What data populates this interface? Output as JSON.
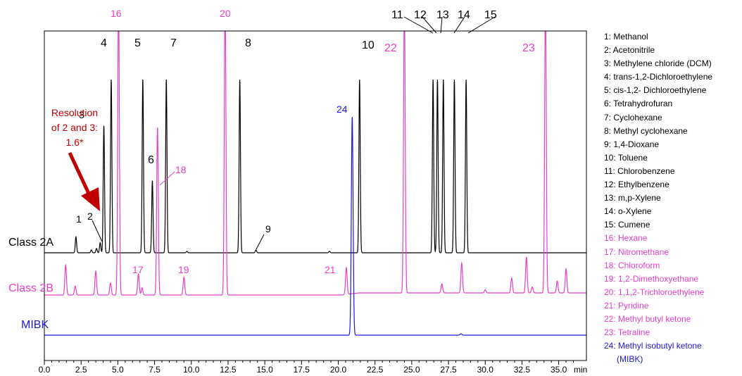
{
  "chart_data": {
    "type": "line",
    "title": "",
    "xlabel": "min",
    "ylabel": "",
    "xlim": [
      0,
      37
    ],
    "x_ticks": [
      "0.0",
      "2.5",
      "5.0",
      "7.5",
      "10.0",
      "12.5",
      "15.0",
      "17.5",
      "20.0",
      "22.5",
      "25.0",
      "27.5",
      "30.0",
      "32.5",
      "35.0"
    ],
    "grid": false,
    "legend_position": "right",
    "colors": {
      "class2a": "#000000",
      "class2b": "#e83ec9",
      "mibk": "#1a1adb",
      "annotation": "#c00000"
    },
    "series": [
      {
        "name": "Class 2A",
        "color": "#000000",
        "peaks": [
          {
            "rt": 2.15,
            "h": 0.11,
            "label": "1"
          },
          {
            "rt": 3.2,
            "h": 0.02,
            "label": ""
          },
          {
            "rt": 3.55,
            "h": 0.03,
            "label": ""
          },
          {
            "rt": 3.8,
            "h": 0.07,
            "label": "2"
          },
          {
            "rt": 4.05,
            "h": 0.88,
            "label": "3"
          },
          {
            "rt": 4.55,
            "h": 1.2,
            "label": "4"
          },
          {
            "rt": 6.7,
            "h": 1.2,
            "label": "5"
          },
          {
            "rt": 7.35,
            "h": 0.5,
            "label": "6"
          },
          {
            "rt": 8.3,
            "h": 1.2,
            "label": "7"
          },
          {
            "rt": 9.7,
            "h": 0.01,
            "label": ""
          },
          {
            "rt": 13.3,
            "h": 1.2,
            "label": "8"
          },
          {
            "rt": 14.4,
            "h": 0.02,
            "label": "9"
          },
          {
            "rt": 19.4,
            "h": 0.01,
            "label": ""
          },
          {
            "rt": 21.45,
            "h": 1.2,
            "label": "10"
          },
          {
            "rt": 26.45,
            "h": 1.2,
            "label": "11"
          },
          {
            "rt": 26.75,
            "h": 1.2,
            "label": "12"
          },
          {
            "rt": 27.15,
            "h": 1.2,
            "label": "13"
          },
          {
            "rt": 27.9,
            "h": 1.2,
            "label": "14"
          },
          {
            "rt": 28.7,
            "h": 1.2,
            "label": "15"
          }
        ]
      },
      {
        "name": "Class 2B",
        "color": "#e83ec9",
        "peaks": [
          {
            "rt": 1.45,
            "h": 0.5,
            "label": ""
          },
          {
            "rt": 2.1,
            "h": 0.15,
            "label": ""
          },
          {
            "rt": 3.5,
            "h": 0.4,
            "label": ""
          },
          {
            "rt": 4.5,
            "h": 0.2,
            "label": ""
          },
          {
            "rt": 5.05,
            "h": 5.0,
            "label": "16"
          },
          {
            "rt": 6.4,
            "h": 0.35,
            "label": "17"
          },
          {
            "rt": 6.65,
            "h": 0.12,
            "label": ""
          },
          {
            "rt": 7.7,
            "h": 2.8,
            "label": "18"
          },
          {
            "rt": 9.5,
            "h": 0.3,
            "label": "19"
          },
          {
            "rt": 12.3,
            "h": 5.0,
            "label": "20"
          },
          {
            "rt": 20.55,
            "h": 0.45,
            "label": "21"
          },
          {
            "rt": 24.5,
            "h": 5.0,
            "label": "22"
          },
          {
            "rt": 27.05,
            "h": 0.15,
            "label": ""
          },
          {
            "rt": 28.4,
            "h": 0.5,
            "label": ""
          },
          {
            "rt": 30.0,
            "h": 0.05,
            "label": ""
          },
          {
            "rt": 31.8,
            "h": 0.25,
            "label": ""
          },
          {
            "rt": 32.8,
            "h": 0.6,
            "label": ""
          },
          {
            "rt": 33.2,
            "h": 0.1,
            "label": ""
          },
          {
            "rt": 34.1,
            "h": 5.0,
            "label": "23"
          },
          {
            "rt": 34.9,
            "h": 0.2,
            "label": ""
          },
          {
            "rt": 35.5,
            "h": 0.4,
            "label": ""
          }
        ]
      },
      {
        "name": "MIBK",
        "color": "#1a1adb",
        "peaks": [
          {
            "rt": 20.95,
            "h": 3.1,
            "label": "24"
          },
          {
            "rt": 28.35,
            "h": 0.02,
            "label": ""
          }
        ]
      }
    ],
    "series_labels": [
      "Class 2A",
      "Class 2B",
      "MIBK"
    ],
    "annotation": "Resolution of 2 and 3: 1.6*",
    "annotation_lines": [
      "Resolution",
      "of 2 and 3:",
      "1.6*"
    ],
    "legend": [
      {
        "text": "1: Methanol",
        "series": "Class 2A"
      },
      {
        "text": "2: Acetonitrile",
        "series": "Class 2A"
      },
      {
        "text": "3: Methylene chloride (DCM)",
        "series": "Class 2A"
      },
      {
        "text": "4: trans-1,2-Dichloroethylene",
        "series": "Class 2A"
      },
      {
        "text": "5: cis-1,2- Dichloroethylene",
        "series": "Class 2A"
      },
      {
        "text": "6: Tetrahydrofuran",
        "series": "Class 2A"
      },
      {
        "text": "7: Cyclohexane",
        "series": "Class 2A"
      },
      {
        "text": "8: Methyl cyclohexane",
        "series": "Class 2A"
      },
      {
        "text": "9: 1,4-Dioxane",
        "series": "Class 2A"
      },
      {
        "text": "10: Toluene",
        "series": "Class 2A"
      },
      {
        "text": "11: Chlorobenzene",
        "series": "Class 2A"
      },
      {
        "text": "12: Ethylbenzene",
        "series": "Class 2A"
      },
      {
        "text": "13: m,p-Xylene",
        "series": "Class 2A"
      },
      {
        "text": "14: o-Xylene",
        "series": "Class 2A"
      },
      {
        "text": "15: Cumene",
        "series": "Class 2A"
      },
      {
        "text": "16: Hexane",
        "series": "Class 2B"
      },
      {
        "text": "17: Nitromethane",
        "series": "Class 2B"
      },
      {
        "text": "18: Chloroform",
        "series": "Class 2B"
      },
      {
        "text": "19: 1,2-Dimethoxyethane",
        "series": "Class 2B"
      },
      {
        "text": "20: 1,1,2-Trichloroethylene",
        "series": "Class 2B"
      },
      {
        "text": "21: Pyridine",
        "series": "Class 2B"
      },
      {
        "text": "22: Methyl butyl ketone",
        "series": "Class 2B"
      },
      {
        "text": "23: Tetraline",
        "series": "Class 2B"
      },
      {
        "text": "24: Methyl isobutyl ketone",
        "series": "MIBK"
      },
      {
        "text": "(MIBK)",
        "series": "MIBK"
      }
    ]
  }
}
